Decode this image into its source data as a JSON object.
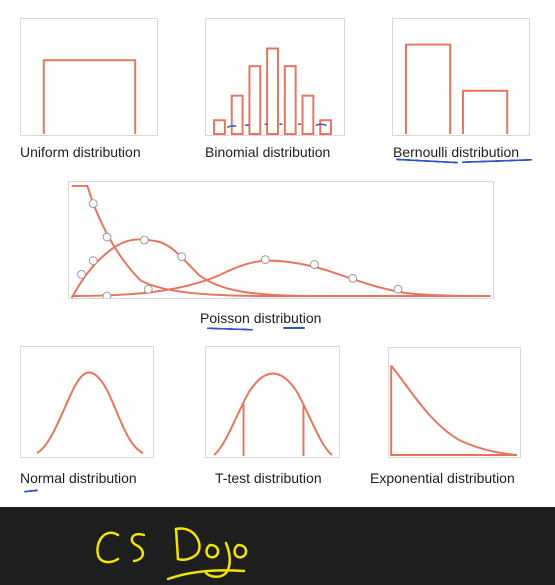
{
  "colors": {
    "curve": "#e8735e",
    "marker_fill": "#ffffff",
    "marker_stroke": "#999999",
    "panel_border": "#d9d9d9",
    "annotation_blue": "#2f52c9",
    "footer_bg": "#1e1e1e",
    "handwriting": "#f2e300"
  },
  "labels": {
    "uniform": "Uniform distribution",
    "binomial": "Binomial distribution",
    "bernoulli": "Bernoulli distribution",
    "poisson": "Poisson distribution",
    "normal": "Normal distribution",
    "ttest": "T-test distribution",
    "exponential": "Exponential distribution"
  },
  "handwriting": "CS Dojo"
}
